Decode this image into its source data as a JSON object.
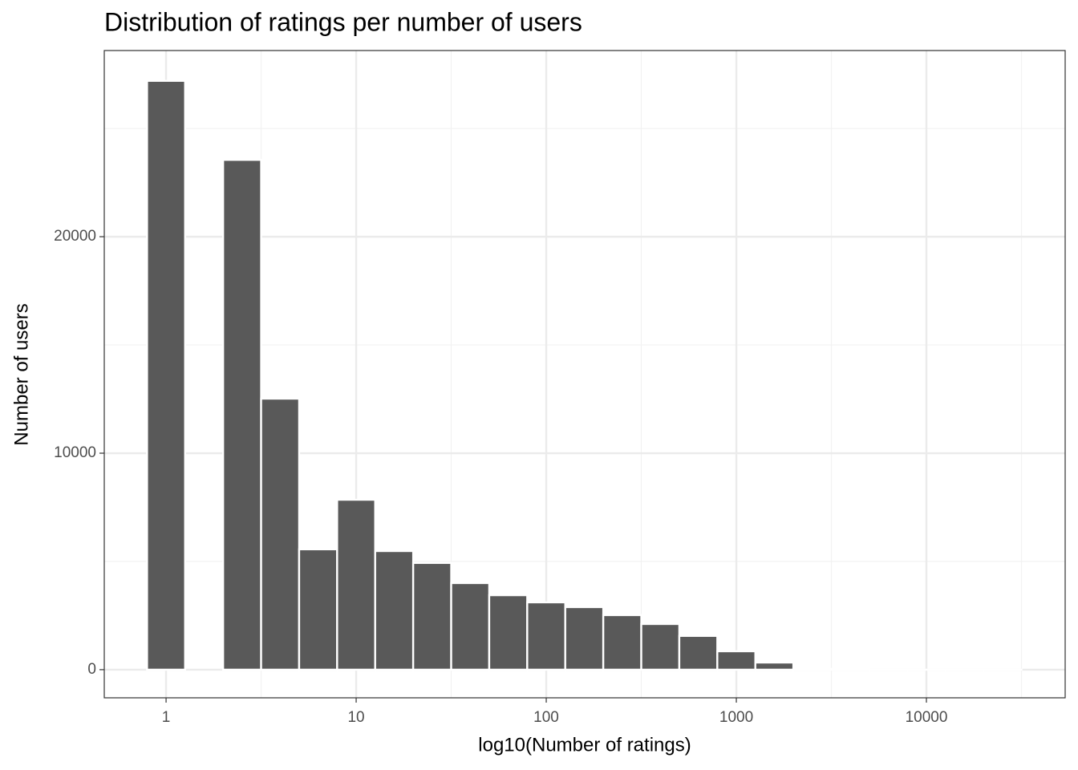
{
  "chart_data": {
    "type": "histogram",
    "title": "Distribution of ratings per number of users",
    "xlabel": "log10(Number of ratings)",
    "ylabel": "Number of users",
    "xscale": "log",
    "bins": [
      0.7943,
      1.2589,
      1.9953,
      3.1623,
      5.0119,
      7.9433,
      12.589,
      19.953,
      31.623,
      50.119,
      79.433,
      125.89,
      199.53,
      316.23,
      501.19,
      794.33,
      1258.9,
      1995.3,
      3162.3,
      5011.9,
      7943.3,
      12589,
      19953,
      31623
    ],
    "counts": [
      27200,
      0,
      23550,
      12520,
      5560,
      7850,
      5480,
      4930,
      4000,
      3440,
      3110,
      2890,
      2520,
      2110,
      1560,
      850,
      330,
      40,
      10,
      3,
      1,
      1,
      1
    ],
    "color": "#595959",
    "edgecolor": "#ffffff",
    "xlim": [
      0.473,
      53700
    ],
    "ylim": [
      -1300,
      28600
    ],
    "xticks": [
      1,
      10,
      100,
      1000,
      10000
    ],
    "yticks": [
      0,
      10000,
      20000
    ],
    "grid": true
  }
}
